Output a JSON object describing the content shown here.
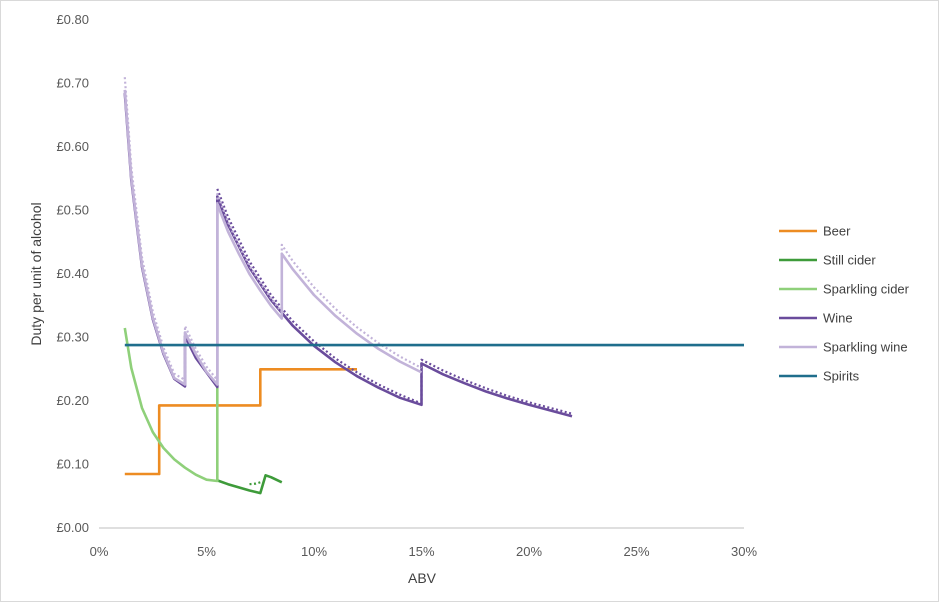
{
  "chart_data": {
    "type": "line",
    "title": "",
    "xlabel": "ABV",
    "ylabel": "Duty per unit of alcohol",
    "xlim": [
      0,
      30
    ],
    "ylim": [
      0,
      0.8
    ],
    "x_ticks": [
      0,
      5,
      10,
      15,
      20,
      25,
      30
    ],
    "x_tick_labels": [
      "0%",
      "5%",
      "10%",
      "15%",
      "20%",
      "25%",
      "30%"
    ],
    "y_ticks": [
      0,
      0.1,
      0.2,
      0.3,
      0.4,
      0.5,
      0.6,
      0.7,
      0.8
    ],
    "y_tick_labels": [
      "£0.00",
      "£0.10",
      "£0.20",
      "£0.30",
      "£0.40",
      "£0.50",
      "£0.60",
      "£0.70",
      "£0.80"
    ],
    "grid": false,
    "legend_position": "right",
    "series": [
      {
        "name": "Beer",
        "color": "#ED8C22",
        "style": "solid",
        "x": [
          1.2,
          2.8,
          2.8,
          7.5,
          7.5,
          12.0
        ],
        "y": [
          0.085,
          0.085,
          0.193,
          0.193,
          0.25,
          0.25
        ]
      },
      {
        "name": "Still cider",
        "color": "#3E9B3A",
        "style": "solid",
        "x": [
          5.5,
          6.0,
          6.5,
          7.0,
          7.5,
          7.5,
          7.75,
          8.0,
          8.5
        ],
        "y": [
          0.075,
          0.069,
          0.064,
          0.059,
          0.055,
          0.055,
          0.083,
          0.08,
          0.072
        ]
      },
      {
        "name": "Still cider (dotted)",
        "color": "#3E9B3A",
        "style": "dotted",
        "x": [
          7.0,
          7.3,
          7.5
        ],
        "y": [
          0.069,
          0.07,
          0.072
        ]
      },
      {
        "name": "Sparkling cider",
        "color": "#8FD07A",
        "style": "solid",
        "x": [
          1.2,
          1.5,
          2.0,
          2.5,
          3.0,
          3.5,
          4.0,
          4.5,
          5.0,
          5.5,
          5.5
        ],
        "y": [
          0.315,
          0.252,
          0.189,
          0.151,
          0.126,
          0.108,
          0.095,
          0.084,
          0.076,
          0.074,
          0.224
        ]
      },
      {
        "name": "Wine",
        "color": "#6A4C9C",
        "style": "solid",
        "x": [
          1.2,
          1.5,
          2.0,
          2.5,
          3.0,
          3.5,
          4.0,
          4.0,
          4.5,
          5.5,
          5.5,
          6.0,
          7.0,
          8.0,
          9.0,
          10.0,
          11.0,
          12.0,
          13.0,
          14.0,
          15.0,
          15.0,
          16.0,
          17.0,
          18.0,
          19.0,
          20.0,
          21.0,
          22.0
        ],
        "y": [
          0.685,
          0.548,
          0.411,
          0.329,
          0.274,
          0.235,
          0.223,
          0.302,
          0.268,
          0.222,
          0.522,
          0.478,
          0.41,
          0.359,
          0.319,
          0.287,
          0.261,
          0.239,
          0.221,
          0.205,
          0.194,
          0.259,
          0.242,
          0.228,
          0.215,
          0.204,
          0.194,
          0.185,
          0.176
        ]
      },
      {
        "name": "Wine (dotted)",
        "color": "#6A4C9C",
        "style": "dotted",
        "x": [
          5.5,
          6.0,
          7.0,
          8.0,
          9.0,
          10.0,
          11.0,
          12.0,
          13.0,
          14.0,
          15.0,
          15.0,
          16.0,
          17.0,
          18.0,
          19.0,
          20.0,
          21.0,
          22.0
        ],
        "y": [
          0.534,
          0.49,
          0.42,
          0.367,
          0.326,
          0.294,
          0.267,
          0.245,
          0.226,
          0.21,
          0.196,
          0.265,
          0.248,
          0.233,
          0.22,
          0.208,
          0.198,
          0.189,
          0.18
        ]
      },
      {
        "name": "Sparkling wine",
        "color": "#C2B3D9",
        "style": "solid",
        "x": [
          1.2,
          1.5,
          2.0,
          2.5,
          3.0,
          3.5,
          4.0,
          4.0,
          4.5,
          5.0,
          5.5,
          5.5,
          6.0,
          6.5,
          7.0,
          7.5,
          8.0,
          8.5,
          8.5,
          9.0,
          10.0,
          11.0,
          12.0,
          13.0,
          14.0,
          15.0
        ],
        "y": [
          0.69,
          0.552,
          0.414,
          0.331,
          0.276,
          0.236,
          0.226,
          0.308,
          0.274,
          0.246,
          0.226,
          0.51,
          0.467,
          0.432,
          0.4,
          0.374,
          0.35,
          0.33,
          0.432,
          0.408,
          0.367,
          0.334,
          0.306,
          0.282,
          0.262,
          0.245
        ]
      },
      {
        "name": "Sparkling wine (dotted)",
        "color": "#C2B3D9",
        "style": "dotted",
        "x": [
          1.2,
          1.5,
          2.0,
          2.5,
          3.0,
          3.5,
          4.0,
          4.0,
          4.5,
          5.0,
          5.5,
          5.5,
          6.0,
          6.5,
          7.0,
          7.5,
          8.0,
          8.5,
          8.5,
          9.0,
          10.0,
          11.0,
          12.0,
          13.0,
          14.0,
          15.0
        ],
        "y": [
          0.71,
          0.568,
          0.426,
          0.341,
          0.284,
          0.243,
          0.233,
          0.318,
          0.282,
          0.254,
          0.233,
          0.526,
          0.482,
          0.445,
          0.413,
          0.386,
          0.362,
          0.34,
          0.446,
          0.421,
          0.379,
          0.345,
          0.316,
          0.291,
          0.27,
          0.252
        ]
      },
      {
        "name": "Spirits",
        "color": "#1F6E8C",
        "style": "solid",
        "x": [
          1.2,
          30.0
        ],
        "y": [
          0.288,
          0.288
        ]
      }
    ],
    "legend": [
      {
        "label": "Beer",
        "color": "#ED8C22"
      },
      {
        "label": "Still cider",
        "color": "#3E9B3A"
      },
      {
        "label": "Sparkling cider",
        "color": "#8FD07A"
      },
      {
        "label": "Wine",
        "color": "#6A4C9C"
      },
      {
        "label": "Sparkling wine",
        "color": "#C2B3D9"
      },
      {
        "label": "Spirits",
        "color": "#1F6E8C"
      }
    ]
  }
}
